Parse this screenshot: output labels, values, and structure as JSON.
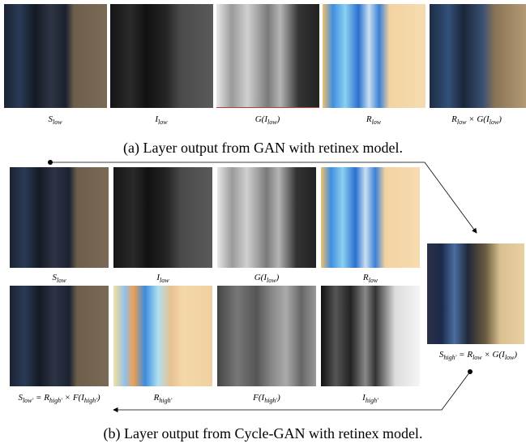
{
  "panel_a": {
    "labels": [
      [
        "S",
        {
          "sub": "low"
        }
      ],
      [
        "I",
        {
          "sub": "low"
        }
      ],
      [
        "G(I",
        {
          "sub": "low"
        },
        ")"
      ],
      [
        "R",
        {
          "sub": "low"
        }
      ],
      [
        "R",
        {
          "sub": "low"
        },
        " × G(I",
        {
          "sub": "low"
        },
        ")"
      ]
    ],
    "caption": "(a) Layer output from GAN with retinex model."
  },
  "panel_b": {
    "top_labels": [
      [
        "S",
        {
          "sub": "low"
        }
      ],
      [
        "I",
        {
          "sub": "low"
        }
      ],
      [
        "G(I",
        {
          "sub": "low"
        },
        ")"
      ],
      [
        "R",
        {
          "sub": "low"
        }
      ]
    ],
    "bottom_labels": [
      [
        "S",
        {
          "sub": "low′"
        },
        " = R",
        {
          "sub": "high′"
        },
        " × F(I",
        {
          "sub": "high′"
        },
        ")"
      ],
      [
        "R",
        {
          "sub": "high′"
        }
      ],
      [
        "F(I",
        {
          "sub": "high′"
        },
        ")"
      ],
      [
        "I",
        {
          "sub": "high′"
        }
      ]
    ],
    "output_label": [
      "S",
      {
        "sub": "high′"
      },
      " = R",
      {
        "sub": "low"
      },
      " × G(I",
      {
        "sub": "low"
      },
      ")"
    ],
    "caption": "(b) Layer output from Cycle-GAN with retinex model."
  }
}
